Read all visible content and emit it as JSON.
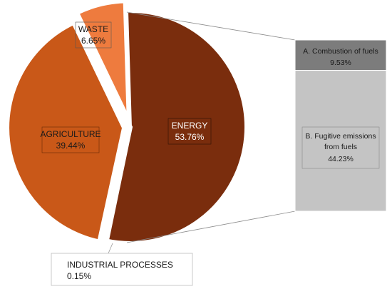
{
  "chart_data": {
    "type": "pie",
    "title": "",
    "slices": [
      {
        "label": "ENERGY",
        "percent_label": "53.76%",
        "value": 53.76,
        "color": "#7a2d0d"
      },
      {
        "label": "INDUSTRIAL PROCESSES",
        "percent_label": "0.15%",
        "value": 0.15,
        "color": "#c0c0c0"
      },
      {
        "label": "AGRICULTURE",
        "percent_label": "39.44%",
        "value": 39.44,
        "color": "#c95818"
      },
      {
        "label": "WASTE",
        "percent_label": "6.65%",
        "value": 6.65,
        "color": "#ee7b3e"
      }
    ],
    "breakdown": {
      "of": "ENERGY",
      "type": "stacked-bar",
      "items": [
        {
          "label_line1": "A. Combustion of fuels",
          "label_line2": "",
          "percent_label": "9.53%",
          "value": 9.53,
          "color": "#7c7c7c"
        },
        {
          "label_line1": "B. Fugitive emissions",
          "label_line2": "from fuels",
          "percent_label": "44.23%",
          "value": 44.23,
          "color": "#c4c4c4"
        }
      ]
    }
  }
}
